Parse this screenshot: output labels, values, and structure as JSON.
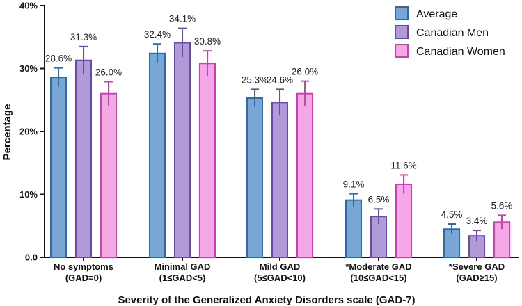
{
  "chart_data": {
    "type": "bar",
    "title": "",
    "xlabel": "Severity of the Generalized Anxiety Disorders scale (GAD-7)",
    "ylabel": "Percentage",
    "ylim": [
      0,
      40
    ],
    "yticks": [
      0,
      10,
      20,
      30,
      40
    ],
    "ytick_labels": [
      "0.0",
      "10%",
      "20%",
      "30%",
      "40%"
    ],
    "legend_position": "top-right",
    "categories": [
      [
        "No symptoms",
        "(GAD=0)"
      ],
      [
        "Minimal GAD",
        "(1≤GAD<5)"
      ],
      [
        "Mild GAD",
        "(5≤GAD<10)"
      ],
      [
        "*Moderate GAD",
        "(10≤GAD<15)"
      ],
      [
        "*Severe GAD",
        "(GAD≥15)"
      ]
    ],
    "series": [
      {
        "name": "Average",
        "fill": "#7aa6d6",
        "stroke": "#2d6aa8",
        "values": [
          28.6,
          32.4,
          25.3,
          9.1,
          4.5
        ],
        "labels": [
          "28.6%",
          "32.4%",
          "25.3%",
          "9.1%",
          "4.5%"
        ],
        "errors": [
          1.5,
          1.5,
          1.4,
          1.0,
          0.8
        ]
      },
      {
        "name": "Canadian Men",
        "fill": "#b09ad8",
        "stroke": "#6a4aa8",
        "values": [
          31.3,
          34.1,
          24.6,
          6.5,
          3.4
        ],
        "labels": [
          "31.3%",
          "34.1%",
          "24.6%",
          "6.5%",
          "3.4%"
        ],
        "errors": [
          2.2,
          2.3,
          2.1,
          1.2,
          0.9
        ]
      },
      {
        "name": "Canadian Women",
        "fill": "#f4a8e6",
        "stroke": "#cc3fb3",
        "values": [
          26.0,
          30.8,
          26.0,
          11.6,
          5.6
        ],
        "labels": [
          "26.0%",
          "30.8%",
          "26.0%",
          "11.6%",
          "5.6%"
        ],
        "errors": [
          1.9,
          2.0,
          2.0,
          1.5,
          1.1
        ]
      }
    ]
  }
}
